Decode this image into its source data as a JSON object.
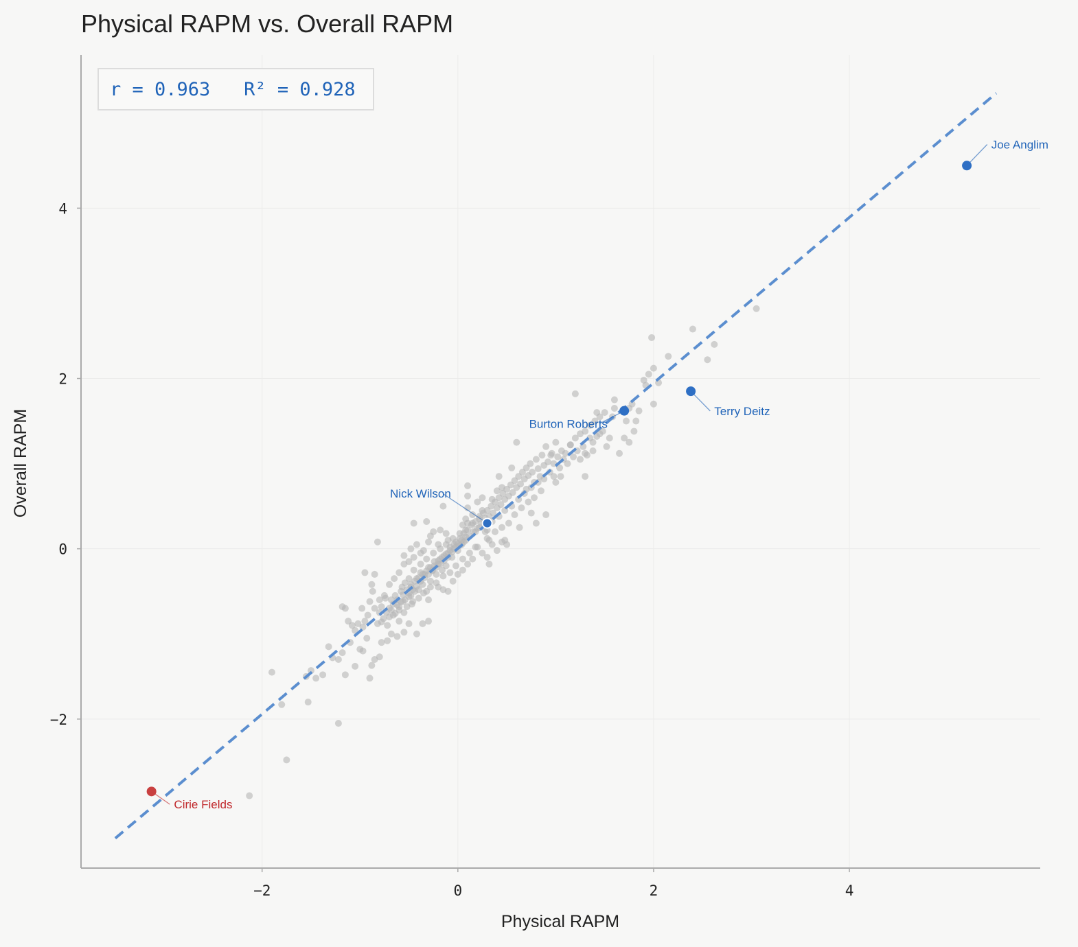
{
  "chart_data": {
    "type": "scatter",
    "title": "Physical RAPM vs. Overall RAPM",
    "xlabel": "Physical RAPM",
    "ylabel": "Overall RAPM",
    "xlim": [
      -3.85,
      5.95
    ],
    "ylim": [
      -3.75,
      5.8
    ],
    "xticks": [
      -2,
      0,
      2,
      4
    ],
    "yticks": [
      -2,
      0,
      2,
      4
    ],
    "xtick_labels": [
      "−2",
      "0",
      "2",
      "4"
    ],
    "ytick_labels": [
      "−2",
      "0",
      "2",
      "4"
    ],
    "grid": true,
    "fit_line": {
      "x": [
        -3.5,
        5.5
      ],
      "y": [
        -3.4,
        5.35
      ],
      "style": "dashed",
      "color": "#5b8ecf"
    },
    "stats_text": "r = 0.963   R² = 0.928",
    "colors": {
      "background": "#f7f7f6",
      "points": "#b5b5b5",
      "highlight": "#2e6fc4",
      "low_highlight": "#c94040",
      "annotation_blue": "#1f63b8",
      "annotation_red": "#c0282b",
      "axis": "#aaaaaa"
    },
    "highlighted": [
      {
        "label": "Joe Anglim",
        "x": 5.2,
        "y": 4.5,
        "color": "#2e6fc4",
        "label_color": "#1f63b8",
        "label_x": 5.45,
        "label_y": 4.7,
        "anchor": "start"
      },
      {
        "label": "Terry Deitz",
        "x": 2.38,
        "y": 1.85,
        "color": "#2e6fc4",
        "label_color": "#1f63b8",
        "label_x": 2.62,
        "label_y": 1.57,
        "anchor": "start"
      },
      {
        "label": "Burton Roberts",
        "x": 1.7,
        "y": 1.62,
        "color": "#2e6fc4",
        "label_color": "#1f63b8",
        "label_x": 1.53,
        "label_y": 1.42,
        "anchor": "end"
      },
      {
        "label": "Nick Wilson",
        "x": 0.3,
        "y": 0.3,
        "color": "#2e6fc4",
        "label_color": "#1f63b8",
        "label_x": -0.07,
        "label_y": 0.6,
        "anchor": "end",
        "outline": "#ffffff"
      },
      {
        "label": "Cirie Fields",
        "x": -3.13,
        "y": -2.85,
        "color": "#c94040",
        "label_color": "#c0282b",
        "label_x": -2.9,
        "label_y": -3.05,
        "anchor": "start"
      }
    ],
    "points": [
      [
        -2.13,
        -2.9
      ],
      [
        -1.75,
        -2.48
      ],
      [
        -1.22,
        -2.05
      ],
      [
        -1.9,
        -1.45
      ],
      [
        -1.8,
        -1.83
      ],
      [
        -1.53,
        -1.8
      ],
      [
        -1.55,
        -1.5
      ],
      [
        -1.5,
        -1.43
      ],
      [
        -1.45,
        -1.52
      ],
      [
        -1.38,
        -1.48
      ],
      [
        -1.32,
        -1.15
      ],
      [
        -1.28,
        -1.28
      ],
      [
        -1.22,
        -1.3
      ],
      [
        -1.18,
        -1.22
      ],
      [
        -1.15,
        -1.48
      ],
      [
        -1.1,
        -1.1
      ],
      [
        -1.05,
        -1.38
      ],
      [
        -1.0,
        -1.18
      ],
      [
        -0.97,
        -1.2
      ],
      [
        -0.93,
        -1.05
      ],
      [
        -0.9,
        -1.52
      ],
      [
        -0.88,
        -1.37
      ],
      [
        -0.85,
        -1.3
      ],
      [
        -0.8,
        -1.27
      ],
      [
        -0.78,
        -1.1
      ],
      [
        -0.72,
        -1.08
      ],
      [
        -0.68,
        -1.0
      ],
      [
        -0.62,
        -1.03
      ],
      [
        -0.55,
        -0.98
      ],
      [
        -0.5,
        -0.88
      ],
      [
        -0.42,
        -1.0
      ],
      [
        -0.36,
        -0.88
      ],
      [
        -0.3,
        -0.85
      ],
      [
        -1.18,
        -0.68
      ],
      [
        -1.15,
        -0.7
      ],
      [
        -1.12,
        -0.85
      ],
      [
        -1.08,
        -0.9
      ],
      [
        -1.05,
        -0.96
      ],
      [
        -1.02,
        -0.88
      ],
      [
        -0.98,
        -0.7
      ],
      [
        -0.97,
        -0.92
      ],
      [
        -0.95,
        -0.85
      ],
      [
        -0.92,
        -0.78
      ],
      [
        -0.9,
        -0.62
      ],
      [
        -0.88,
        -0.42
      ],
      [
        -0.87,
        -0.5
      ],
      [
        -0.85,
        -0.7
      ],
      [
        -0.82,
        -0.88
      ],
      [
        -0.8,
        -0.75
      ],
      [
        -0.78,
        -0.68
      ],
      [
        -0.76,
        -0.82
      ],
      [
        -0.74,
        -0.58
      ],
      [
        -0.72,
        -0.9
      ],
      [
        -0.7,
        -0.7
      ],
      [
        -0.68,
        -0.6
      ],
      [
        -0.66,
        -0.78
      ],
      [
        -0.64,
        -0.55
      ],
      [
        -0.62,
        -0.66
      ],
      [
        -0.6,
        -0.72
      ],
      [
        -0.58,
        -0.5
      ],
      [
        -0.56,
        -0.62
      ],
      [
        -0.54,
        -0.4
      ],
      [
        -0.52,
        -0.68
      ],
      [
        -0.5,
        -0.56
      ],
      [
        -0.48,
        -0.45
      ],
      [
        -0.46,
        -0.62
      ],
      [
        -0.44,
        -0.5
      ],
      [
        -0.42,
        -0.35
      ],
      [
        -0.4,
        -0.48
      ],
      [
        -0.38,
        -0.28
      ],
      [
        -0.36,
        -0.42
      ],
      [
        -0.34,
        -0.3
      ],
      [
        -0.32,
        -0.5
      ],
      [
        -0.3,
        -0.22
      ],
      [
        -0.28,
        -0.38
      ],
      [
        -0.26,
        -0.25
      ],
      [
        -0.24,
        -0.15
      ],
      [
        -0.22,
        -0.3
      ],
      [
        -0.2,
        -0.18
      ],
      [
        -0.18,
        -0.12
      ],
      [
        -0.16,
        -0.25
      ],
      [
        -0.14,
        -0.08
      ],
      [
        -0.12,
        -0.2
      ],
      [
        -0.1,
        -0.05
      ],
      [
        -0.08,
        0.02
      ],
      [
        -0.06,
        -0.1
      ],
      [
        -0.04,
        0.05
      ],
      [
        -0.02,
        0.08
      ],
      [
        0.0,
        -0.02
      ],
      [
        0.02,
        0.12
      ],
      [
        0.04,
        0.05
      ],
      [
        0.06,
        0.18
      ],
      [
        0.08,
        0.1
      ],
      [
        0.1,
        0.22
      ],
      [
        0.12,
        0.15
      ],
      [
        0.14,
        0.28
      ],
      [
        0.16,
        0.2
      ],
      [
        0.18,
        0.32
      ],
      [
        0.2,
        0.24
      ],
      [
        0.22,
        0.38
      ],
      [
        0.24,
        0.3
      ],
      [
        0.26,
        0.42
      ],
      [
        0.28,
        0.36
      ],
      [
        -0.7,
        -0.8
      ],
      [
        -0.68,
        -0.72
      ],
      [
        -0.66,
        -0.65
      ],
      [
        -0.64,
        -0.76
      ],
      [
        -0.62,
        -0.6
      ],
      [
        -0.6,
        -0.68
      ],
      [
        -0.58,
        -0.62
      ],
      [
        -0.56,
        -0.54
      ],
      [
        -0.54,
        -0.6
      ],
      [
        -0.52,
        -0.48
      ],
      [
        -0.5,
        -0.52
      ],
      [
        -0.48,
        -0.42
      ],
      [
        -0.46,
        -0.48
      ],
      [
        -0.44,
        -0.38
      ],
      [
        -0.42,
        -0.44
      ],
      [
        -0.4,
        -0.34
      ],
      [
        -0.38,
        -0.38
      ],
      [
        -0.36,
        -0.3
      ],
      [
        -0.34,
        -0.34
      ],
      [
        -0.32,
        -0.26
      ],
      [
        -0.3,
        -0.3
      ],
      [
        -0.28,
        -0.22
      ],
      [
        -0.26,
        -0.26
      ],
      [
        -0.24,
        -0.2
      ],
      [
        -0.22,
        -0.22
      ],
      [
        -0.2,
        -0.14
      ],
      [
        -0.18,
        -0.18
      ],
      [
        -0.16,
        -0.1
      ],
      [
        -0.14,
        -0.14
      ],
      [
        -0.12,
        -0.06
      ],
      [
        -0.1,
        -0.1
      ],
      [
        -0.08,
        -0.02
      ],
      [
        -0.06,
        -0.04
      ],
      [
        -0.04,
        0.0
      ],
      [
        -0.02,
        0.02
      ],
      [
        0.0,
        0.06
      ],
      [
        0.02,
        0.04
      ],
      [
        0.04,
        0.1
      ],
      [
        0.06,
        0.08
      ],
      [
        0.08,
        0.14
      ],
      [
        -0.8,
        -0.6
      ],
      [
        -0.78,
        -0.86
      ],
      [
        -0.75,
        -0.55
      ],
      [
        -0.73,
        -0.75
      ],
      [
        -0.6,
        -0.85
      ],
      [
        -0.57,
        -0.45
      ],
      [
        -0.55,
        -0.75
      ],
      [
        -0.5,
        -0.35
      ],
      [
        -0.47,
        -0.65
      ],
      [
        -0.45,
        -0.25
      ],
      [
        -0.4,
        -0.58
      ],
      [
        -0.38,
        -0.18
      ],
      [
        -0.35,
        -0.52
      ],
      [
        -0.32,
        -0.12
      ],
      [
        -0.28,
        -0.45
      ],
      [
        -0.25,
        -0.05
      ],
      [
        -0.22,
        -0.4
      ],
      [
        -0.18,
        0.0
      ],
      [
        -0.15,
        -0.32
      ],
      [
        -0.12,
        0.05
      ],
      [
        -0.08,
        -0.28
      ],
      [
        -0.05,
        0.12
      ],
      [
        -0.02,
        -0.2
      ],
      [
        0.02,
        0.18
      ],
      [
        0.05,
        -0.12
      ],
      [
        0.08,
        0.22
      ],
      [
        0.12,
        -0.05
      ],
      [
        0.15,
        0.3
      ],
      [
        0.18,
        0.02
      ],
      [
        0.22,
        0.35
      ],
      [
        -0.6,
        -0.28
      ],
      [
        -0.55,
        -0.08
      ],
      [
        -0.5,
        -0.15
      ],
      [
        -0.48,
        0.0
      ],
      [
        -0.45,
        -0.1
      ],
      [
        -0.42,
        0.05
      ],
      [
        -0.38,
        -0.05
      ],
      [
        -0.35,
        -0.02
      ],
      [
        -0.3,
        0.08
      ],
      [
        -0.2,
        0.05
      ],
      [
        -0.1,
        0.1
      ],
      [
        -0.55,
        -0.18
      ],
      [
        -0.65,
        -0.35
      ],
      [
        -0.7,
        -0.42
      ],
      [
        -0.85,
        -0.3
      ],
      [
        -0.95,
        -0.28
      ],
      [
        -0.48,
        -0.55
      ],
      [
        -0.3,
        -0.6
      ],
      [
        -0.2,
        -0.45
      ],
      [
        -0.15,
        -0.48
      ],
      [
        -0.1,
        -0.5
      ],
      [
        -0.05,
        -0.38
      ],
      [
        0.0,
        -0.3
      ],
      [
        0.05,
        -0.25
      ],
      [
        0.1,
        -0.18
      ],
      [
        0.15,
        -0.12
      ],
      [
        -0.45,
        0.3
      ],
      [
        -0.32,
        0.32
      ],
      [
        -0.28,
        0.15
      ],
      [
        -0.25,
        0.2
      ],
      [
        -0.18,
        0.22
      ],
      [
        -0.12,
        0.18
      ],
      [
        -0.15,
        0.5
      ],
      [
        -0.82,
        0.08
      ],
      [
        0.3,
        0.45
      ],
      [
        0.32,
        0.38
      ],
      [
        0.34,
        0.5
      ],
      [
        0.36,
        0.42
      ],
      [
        0.38,
        0.55
      ],
      [
        0.4,
        0.48
      ],
      [
        0.42,
        0.6
      ],
      [
        0.44,
        0.52
      ],
      [
        0.46,
        0.65
      ],
      [
        0.48,
        0.58
      ],
      [
        0.5,
        0.7
      ],
      [
        0.52,
        0.62
      ],
      [
        0.54,
        0.75
      ],
      [
        0.56,
        0.66
      ],
      [
        0.58,
        0.8
      ],
      [
        0.6,
        0.72
      ],
      [
        0.62,
        0.85
      ],
      [
        0.64,
        0.76
      ],
      [
        0.66,
        0.9
      ],
      [
        0.68,
        0.82
      ],
      [
        0.7,
        0.95
      ],
      [
        0.72,
        0.86
      ],
      [
        0.74,
        1.0
      ],
      [
        0.76,
        0.9
      ],
      [
        0.78,
        0.78
      ],
      [
        0.8,
        1.05
      ],
      [
        0.82,
        0.94
      ],
      [
        0.84,
        0.85
      ],
      [
        0.86,
        1.1
      ],
      [
        0.88,
        0.98
      ],
      [
        0.9,
        1.2
      ],
      [
        0.92,
        1.02
      ],
      [
        0.94,
        0.9
      ],
      [
        0.96,
        1.12
      ],
      [
        0.98,
        1.0
      ],
      [
        1.0,
        1.25
      ],
      [
        1.02,
        1.08
      ],
      [
        1.04,
        0.95
      ],
      [
        1.06,
        1.15
      ],
      [
        1.08,
        1.05
      ],
      [
        0.25,
        0.45
      ],
      [
        0.28,
        0.2
      ],
      [
        0.32,
        0.1
      ],
      [
        0.35,
        0.32
      ],
      [
        0.38,
        0.2
      ],
      [
        0.42,
        0.38
      ],
      [
        0.45,
        0.25
      ],
      [
        0.48,
        0.45
      ],
      [
        0.52,
        0.3
      ],
      [
        0.55,
        0.5
      ],
      [
        0.58,
        0.4
      ],
      [
        0.62,
        0.58
      ],
      [
        0.65,
        0.48
      ],
      [
        0.68,
        0.65
      ],
      [
        0.72,
        0.55
      ],
      [
        0.75,
        0.72
      ],
      [
        0.78,
        0.6
      ],
      [
        0.82,
        0.78
      ],
      [
        0.85,
        0.68
      ],
      [
        0.88,
        0.82
      ],
      [
        0.1,
        0.48
      ],
      [
        0.15,
        0.4
      ],
      [
        0.2,
        0.55
      ],
      [
        0.25,
        0.6
      ],
      [
        0.18,
        0.2
      ],
      [
        0.22,
        0.25
      ],
      [
        0.08,
        0.35
      ],
      [
        0.05,
        0.28
      ],
      [
        0.1,
        0.3
      ],
      [
        0.35,
        0.58
      ],
      [
        0.4,
        0.68
      ],
      [
        0.45,
        0.72
      ],
      [
        0.42,
        0.85
      ],
      [
        0.1,
        0.62
      ],
      [
        0.1,
        0.74
      ],
      [
        0.55,
        0.95
      ],
      [
        0.6,
        1.25
      ],
      [
        0.7,
        0.7
      ],
      [
        0.75,
        0.42
      ],
      [
        0.8,
        0.3
      ],
      [
        0.63,
        0.25
      ],
      [
        0.5,
        0.05
      ],
      [
        0.48,
        0.1
      ],
      [
        0.35,
        0.05
      ],
      [
        0.3,
        -0.1
      ],
      [
        0.25,
        -0.05
      ],
      [
        0.2,
        0.02
      ],
      [
        0.3,
        0.12
      ],
      [
        0.4,
        -0.02
      ],
      [
        0.45,
        0.08
      ],
      [
        0.32,
        -0.18
      ],
      [
        0.3,
        0.22
      ],
      [
        0.27,
        0.3
      ],
      [
        1.1,
        1.12
      ],
      [
        1.12,
        1.0
      ],
      [
        1.15,
        1.22
      ],
      [
        1.18,
        1.08
      ],
      [
        1.2,
        1.3
      ],
      [
        1.22,
        1.15
      ],
      [
        1.25,
        1.35
      ],
      [
        1.28,
        1.2
      ],
      [
        1.3,
        1.38
      ],
      [
        1.32,
        1.1
      ],
      [
        1.35,
        1.45
      ],
      [
        1.38,
        1.25
      ],
      [
        1.4,
        1.5
      ],
      [
        1.42,
        1.32
      ],
      [
        1.45,
        1.55
      ],
      [
        1.48,
        1.38
      ],
      [
        1.5,
        1.6
      ],
      [
        1.52,
        1.2
      ],
      [
        1.55,
        1.3
      ],
      [
        1.58,
        1.55
      ],
      [
        1.6,
        1.65
      ],
      [
        1.65,
        1.12
      ],
      [
        1.7,
        1.3
      ],
      [
        1.72,
        1.5
      ],
      [
        1.75,
        1.25
      ],
      [
        1.78,
        1.7
      ],
      [
        1.8,
        1.38
      ],
      [
        1.82,
        1.5
      ],
      [
        1.85,
        1.62
      ],
      [
        1.9,
        1.98
      ],
      [
        1.92,
        1.92
      ],
      [
        1.95,
        2.05
      ],
      [
        1.98,
        2.48
      ],
      [
        2.0,
        2.12
      ],
      [
        2.0,
        1.7
      ],
      [
        2.05,
        1.95
      ],
      [
        2.15,
        2.26
      ],
      [
        2.4,
        2.58
      ],
      [
        2.55,
        2.22
      ],
      [
        2.62,
        2.4
      ],
      [
        3.05,
        2.82
      ],
      [
        1.2,
        1.82
      ],
      [
        1.3,
        0.85
      ],
      [
        1.25,
        1.05
      ],
      [
        1.3,
        1.12
      ],
      [
        1.35,
        1.3
      ],
      [
        1.42,
        1.6
      ],
      [
        1.6,
        1.75
      ],
      [
        1.75,
        1.65
      ],
      [
        0.9,
        0.4
      ],
      [
        0.98,
        0.85
      ],
      [
        1.0,
        0.78
      ],
      [
        1.05,
        0.85
      ],
      [
        0.95,
        1.1
      ],
      [
        1.15,
        1.22
      ],
      [
        1.38,
        1.15
      ],
      [
        1.45,
        1.35
      ]
    ]
  }
}
